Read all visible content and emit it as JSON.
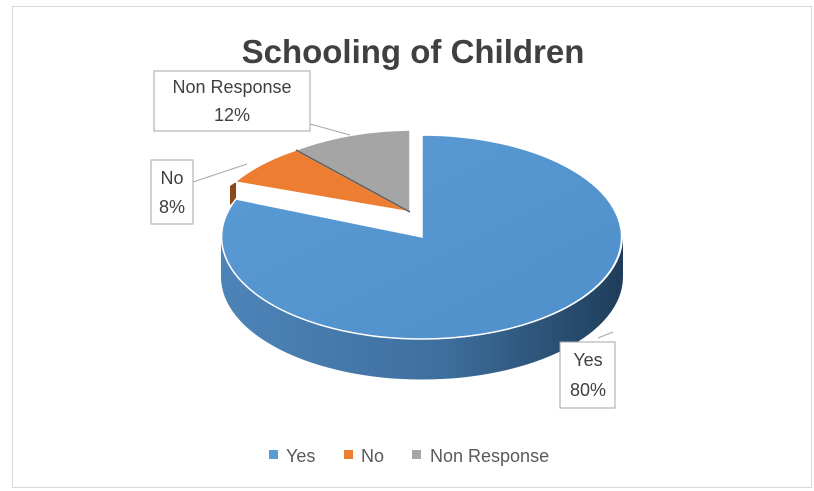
{
  "chart_data": {
    "type": "pie",
    "title": "Schooling of Children",
    "categories": [
      "Yes",
      "No",
      "Non Response"
    ],
    "values": [
      80,
      8,
      12
    ],
    "value_labels": [
      "80%",
      "8%",
      "12%"
    ],
    "colors": [
      "#5b9bd5",
      "#ed7d31",
      "#a5a5a5"
    ],
    "legend_position": "bottom",
    "style": "3d-exploded"
  }
}
